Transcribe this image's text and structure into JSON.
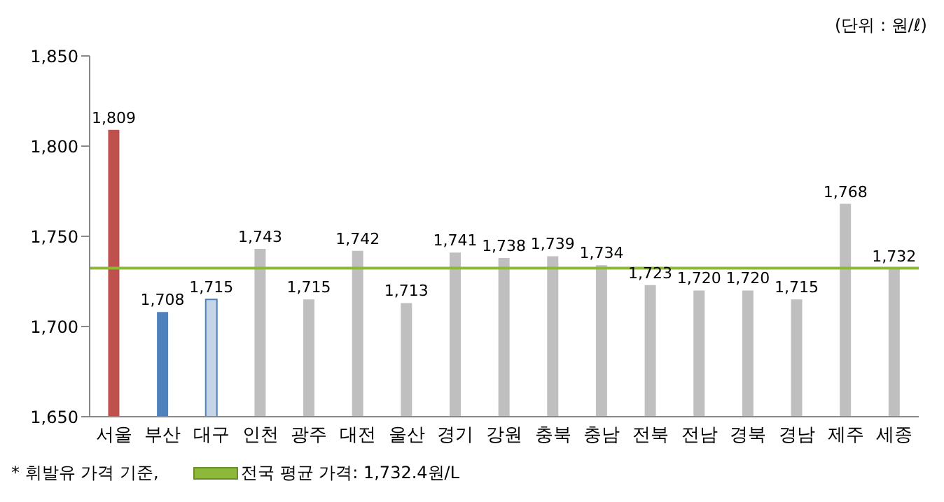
{
  "chart_data": {
    "type": "bar",
    "categories": [
      "서울",
      "부산",
      "대구",
      "인천",
      "광주",
      "대전",
      "울산",
      "경기",
      "강원",
      "충북",
      "충남",
      "전북",
      "전남",
      "경북",
      "경남",
      "제주",
      "세종"
    ],
    "values": [
      1809,
      1708,
      1715,
      1743,
      1715,
      1742,
      1713,
      1741,
      1738,
      1739,
      1734,
      1723,
      1720,
      1720,
      1715,
      1768,
      1732
    ],
    "value_labels": [
      "1,809",
      "1,708",
      "1,715",
      "1,743",
      "1,715",
      "1,742",
      "1,713",
      "1,741",
      "1,738",
      "1,739",
      "1,734",
      "1,723",
      "1,720",
      "1,720",
      "1,715",
      "1,768",
      "1,732"
    ],
    "colors": [
      "#c0504d",
      "#4f81bd",
      "#c6d5e6",
      "#bfbfbf",
      "#bfbfbf",
      "#bfbfbf",
      "#bfbfbf",
      "#bfbfbf",
      "#bfbfbf",
      "#bfbfbf",
      "#bfbfbf",
      "#bfbfbf",
      "#bfbfbf",
      "#bfbfbf",
      "#bfbfbf",
      "#bfbfbf",
      "#bfbfbf"
    ],
    "ylim": [
      1650,
      1850
    ],
    "yticks": [
      {
        "value": 1650,
        "label": "1,650"
      },
      {
        "value": 1700,
        "label": "1,700"
      },
      {
        "value": 1750,
        "label": "1,750"
      },
      {
        "value": 1800,
        "label": "1,800"
      },
      {
        "value": 1850,
        "label": "1,850"
      }
    ],
    "grid": false,
    "legend": "bottom left",
    "ref_lines": [
      {
        "axis": "y",
        "value": 1732.4,
        "label": "전국 평균 가격: 1,732.4원/L",
        "color": "#8db83a"
      }
    ],
    "annotations": [
      "(단위 : 원/ℓ)",
      "* 휘발유 가격 기준,"
    ]
  }
}
